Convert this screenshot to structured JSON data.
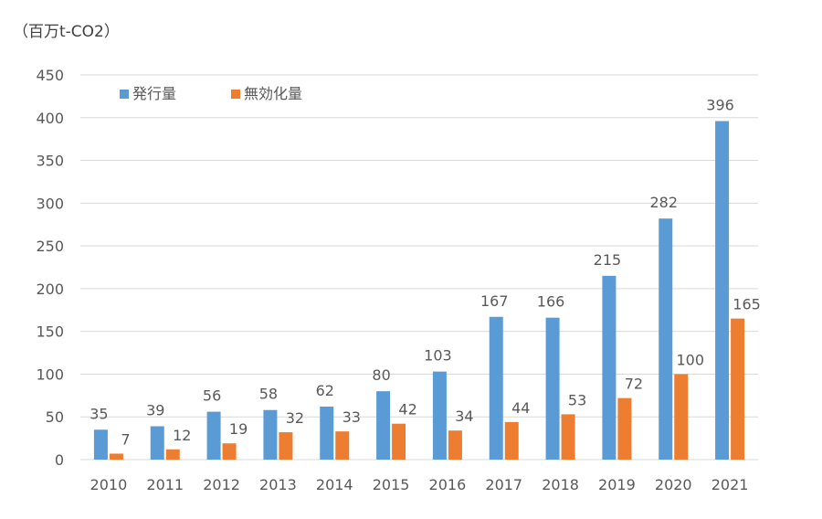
{
  "unit_label": "（百万t-CO2）",
  "colors": {
    "issued": "#5B9BD5",
    "invalidated": "#ED7D31",
    "grid": "#d9d9d9",
    "text": "#595959"
  },
  "chart_data": {
    "type": "bar",
    "title": "",
    "ylabel": "（百万t-CO2）",
    "categories": [
      "2010",
      "2011",
      "2012",
      "2013",
      "2014",
      "2015",
      "2016",
      "2017",
      "2018",
      "2019",
      "2020",
      "2021"
    ],
    "series": [
      {
        "name": "発行量",
        "values": [
          35,
          39,
          56,
          58,
          62,
          80,
          103,
          167,
          166,
          215,
          282,
          396
        ]
      },
      {
        "name": "無効化量",
        "values": [
          7,
          12,
          19,
          32,
          33,
          42,
          34,
          44,
          53,
          72,
          100,
          165
        ]
      }
    ],
    "ylim": [
      0,
      450
    ],
    "yticks": [
      0,
      50,
      100,
      150,
      200,
      250,
      300,
      350,
      400,
      450
    ],
    "grid": true,
    "legend_position": "top-left"
  }
}
